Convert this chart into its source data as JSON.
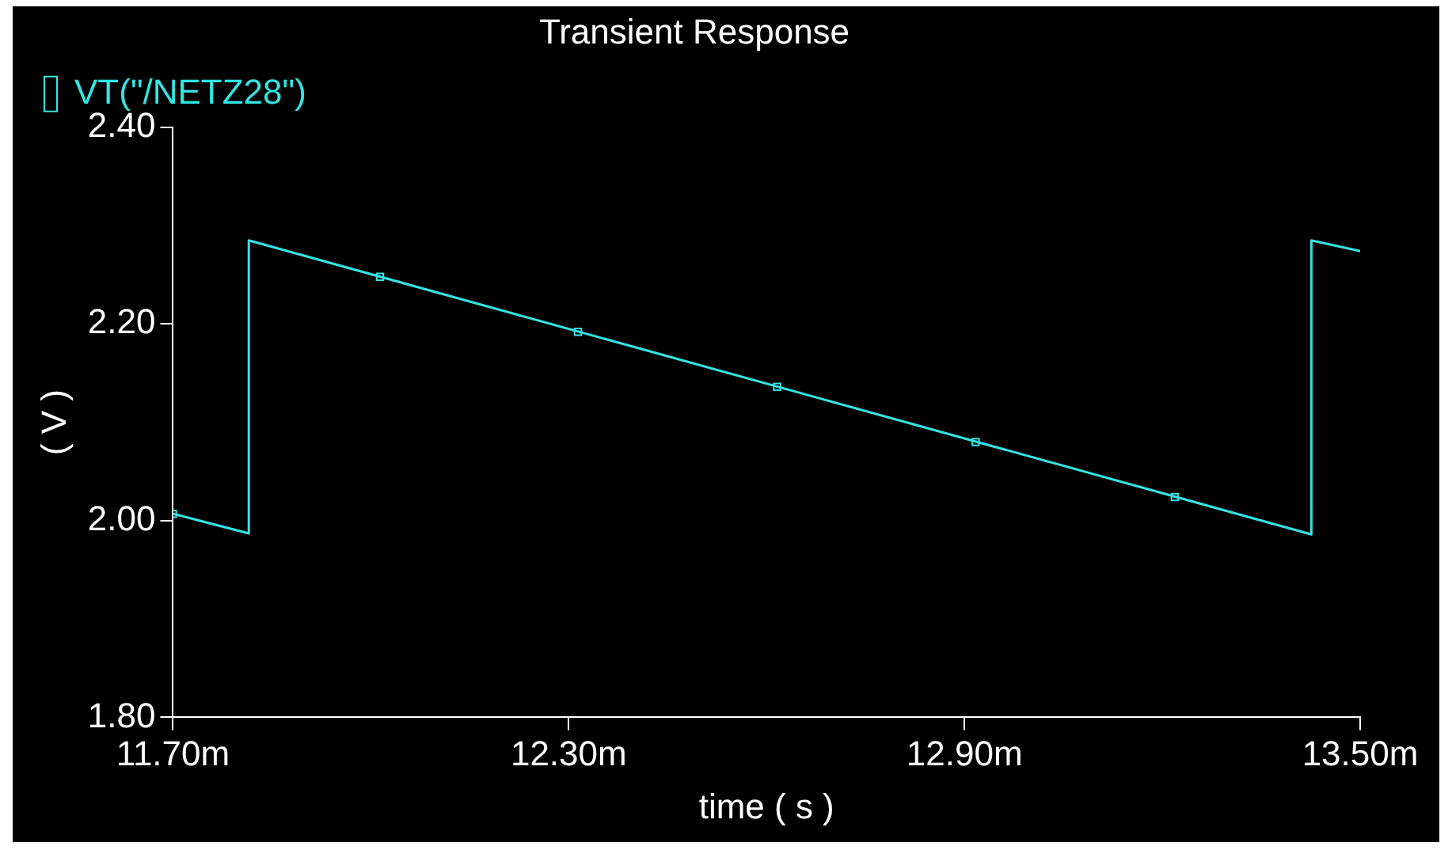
{
  "chart_data": {
    "type": "line",
    "title": "Transient Response",
    "xlabel": "time ( s )",
    "ylabel": "( V )",
    "xlim": [
      11.7,
      13.5
    ],
    "xticks": [
      {
        "value": 11.7,
        "label": "11.70m"
      },
      {
        "value": 12.3,
        "label": "12.30m"
      },
      {
        "value": 12.9,
        "label": "12.90m"
      },
      {
        "value": 13.5,
        "label": "13.50m"
      }
    ],
    "ylim": [
      1.8,
      2.4
    ],
    "yticks": [
      {
        "value": 1.8,
        "label": "1.80"
      },
      {
        "value": 2.0,
        "label": "2.00"
      },
      {
        "value": 2.2,
        "label": "2.20"
      },
      {
        "value": 2.4,
        "label": "2.40"
      }
    ],
    "grid": false,
    "legend": "top left",
    "series": [
      {
        "name": "VT(\"/NETZ28\")",
        "color": "#33e5e5",
        "marker": "none",
        "x": [
          11.7,
          11.815,
          11.815,
          13.426,
          13.426,
          13.5
        ],
        "values": [
          2.007,
          1.987,
          2.285,
          1.986,
          2.285,
          2.274
        ]
      },
      {
        "type": "scatter",
        "color": "#33e5e5",
        "marker": "square",
        "x": [
          11.7,
          12.014,
          12.314,
          12.616,
          12.917,
          13.219
        ],
        "values": [
          2.007,
          2.248,
          2.192,
          2.136,
          2.08,
          2.024
        ]
      }
    ]
  }
}
